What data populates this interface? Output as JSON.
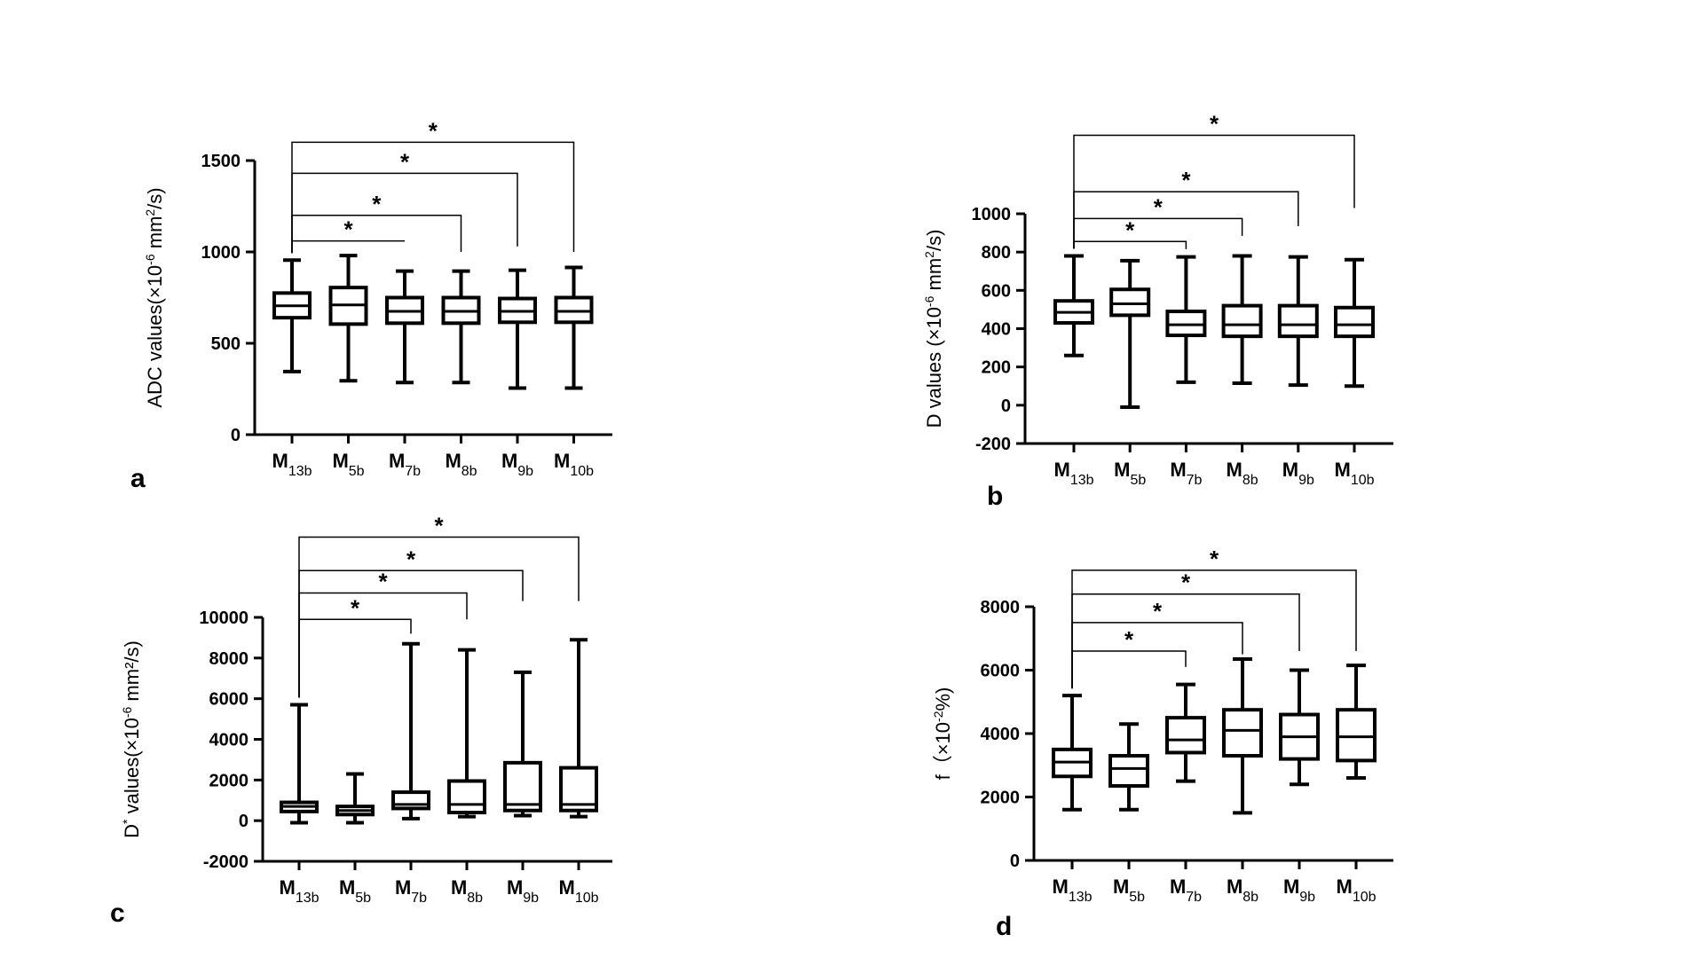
{
  "figure": {
    "background": "#ffffff",
    "stroke_color": "#000000"
  },
  "chart_data": [
    {
      "type": "box",
      "panel_label": "a",
      "ylabel_main": "ADC values(×10",
      "ylabel_sup": "-6",
      "ylabel_mid": " mm",
      "ylabel_sup2": "2",
      "ylabel_end": "/s)",
      "ylim": [
        0,
        1500
      ],
      "yticks": [
        0,
        500,
        1000,
        1500
      ],
      "categories": [
        {
          "base": "M",
          "sub": "13b"
        },
        {
          "base": "M",
          "sub": "5b"
        },
        {
          "base": "M",
          "sub": "7b"
        },
        {
          "base": "M",
          "sub": "8b"
        },
        {
          "base": "M",
          "sub": "9b"
        },
        {
          "base": "M",
          "sub": "10b"
        }
      ],
      "boxes": [
        {
          "min": 345,
          "q1": 640,
          "median": 705,
          "q3": 775,
          "max": 955
        },
        {
          "min": 295,
          "q1": 605,
          "median": 710,
          "q3": 805,
          "max": 980
        },
        {
          "min": 285,
          "q1": 610,
          "median": 675,
          "q3": 750,
          "max": 895
        },
        {
          "min": 285,
          "q1": 610,
          "median": 675,
          "q3": 750,
          "max": 895
        },
        {
          "min": 255,
          "q1": 615,
          "median": 675,
          "q3": 745,
          "max": 900
        },
        {
          "min": 255,
          "q1": 615,
          "median": 675,
          "q3": 750,
          "max": 915
        }
      ],
      "significance": [
        {
          "from": 0,
          "to": 2,
          "label": "*",
          "top": 1060,
          "right_end": 1060
        },
        {
          "from": 0,
          "to": 3,
          "label": "*",
          "top": 1200,
          "right_end": 1000
        },
        {
          "from": 0,
          "to": 4,
          "label": "*",
          "top": 1430,
          "right_end": 1030
        },
        {
          "from": 0,
          "to": 5,
          "label": "*",
          "top": 1600,
          "right_end": 1000
        }
      ]
    },
    {
      "type": "box",
      "panel_label": "b",
      "ylabel_main": "D values (×10",
      "ylabel_sup": "-6",
      "ylabel_mid": " mm",
      "ylabel_sup2": "2",
      "ylabel_end": "/s)",
      "ylim": [
        -200,
        1000
      ],
      "yticks": [
        -200,
        0,
        200,
        400,
        600,
        800,
        1000
      ],
      "categories": [
        {
          "base": "M",
          "sub": "13b"
        },
        {
          "base": "M",
          "sub": "5b"
        },
        {
          "base": "M",
          "sub": "7b"
        },
        {
          "base": "M",
          "sub": "8b"
        },
        {
          "base": "M",
          "sub": "9b"
        },
        {
          "base": "M",
          "sub": "10b"
        }
      ],
      "boxes": [
        {
          "min": 260,
          "q1": 430,
          "median": 485,
          "q3": 545,
          "max": 780
        },
        {
          "min": -10,
          "q1": 470,
          "median": 530,
          "q3": 605,
          "max": 755
        },
        {
          "min": 120,
          "q1": 365,
          "median": 420,
          "q3": 490,
          "max": 775
        },
        {
          "min": 115,
          "q1": 360,
          "median": 420,
          "q3": 520,
          "max": 780
        },
        {
          "min": 105,
          "q1": 360,
          "median": 420,
          "q3": 520,
          "max": 775
        },
        {
          "min": 100,
          "q1": 360,
          "median": 420,
          "q3": 510,
          "max": 760
        }
      ],
      "significance": [
        {
          "from": 0,
          "to": 2,
          "label": "*",
          "top": 855,
          "right_end": 815
        },
        {
          "from": 0,
          "to": 3,
          "label": "*",
          "top": 975,
          "right_end": 885
        },
        {
          "from": 0,
          "to": 4,
          "label": "*",
          "top": 1115,
          "right_end": 935
        },
        {
          "from": 0,
          "to": 5,
          "label": "*",
          "top": 1410,
          "right_end": 1030
        }
      ]
    },
    {
      "type": "box",
      "panel_label": "c",
      "ylabel_main": "D",
      "ylabel_sup": "*",
      "ylabel_mid": " values(×10",
      "ylabel_sup2": "-6",
      "ylabel_end": " mm²/s)",
      "ylim": [
        -2000,
        10000
      ],
      "yticks": [
        -2000,
        0,
        2000,
        4000,
        6000,
        8000,
        10000
      ],
      "categories": [
        {
          "base": "M",
          "sub": "13b"
        },
        {
          "base": "M",
          "sub": "5b"
        },
        {
          "base": "M",
          "sub": "7b"
        },
        {
          "base": "M",
          "sub": "8b"
        },
        {
          "base": "M",
          "sub": "9b"
        },
        {
          "base": "M",
          "sub": "10b"
        }
      ],
      "boxes": [
        {
          "min": -100,
          "q1": 450,
          "median": 700,
          "q3": 900,
          "max": 5700
        },
        {
          "min": -100,
          "q1": 300,
          "median": 500,
          "q3": 700,
          "max": 2300
        },
        {
          "min": 100,
          "q1": 600,
          "median": 800,
          "q3": 1400,
          "max": 8700
        },
        {
          "min": 200,
          "q1": 400,
          "median": 800,
          "q3": 1950,
          "max": 8400
        },
        {
          "min": 250,
          "q1": 500,
          "median": 800,
          "q3": 2850,
          "max": 7300
        },
        {
          "min": 200,
          "q1": 500,
          "median": 800,
          "q3": 2600,
          "max": 8900
        }
      ],
      "significance": [
        {
          "from": 0,
          "to": 2,
          "label": "*",
          "top": 9900,
          "right_end": 9200
        },
        {
          "from": 0,
          "to": 3,
          "label": "*",
          "top": 11200,
          "right_end": 9900
        },
        {
          "from": 0,
          "to": 4,
          "label": "*",
          "top": 12300,
          "right_end": 10800
        },
        {
          "from": 0,
          "to": 5,
          "label": "*",
          "top": 13950,
          "right_end": 10800
        }
      ]
    },
    {
      "type": "box",
      "panel_label": "d",
      "ylabel_main": "f（×10",
      "ylabel_sup": "-2",
      "ylabel_mid": "%)",
      "ylabel_sup2": "",
      "ylabel_end": "",
      "ylim": [
        0,
        8000
      ],
      "yticks": [
        0,
        2000,
        4000,
        6000,
        8000
      ],
      "categories": [
        {
          "base": "M",
          "sub": "13b"
        },
        {
          "base": "M",
          "sub": "5b"
        },
        {
          "base": "M",
          "sub": "7b"
        },
        {
          "base": "M",
          "sub": "8b"
        },
        {
          "base": "M",
          "sub": "9b"
        },
        {
          "base": "M",
          "sub": "10b"
        }
      ],
      "boxes": [
        {
          "min": 1600,
          "q1": 2650,
          "median": 3100,
          "q3": 3500,
          "max": 5200
        },
        {
          "min": 1600,
          "q1": 2350,
          "median": 2900,
          "q3": 3300,
          "max": 4300
        },
        {
          "min": 2500,
          "q1": 3400,
          "median": 3800,
          "q3": 4500,
          "max": 5550
        },
        {
          "min": 1500,
          "q1": 3300,
          "median": 4100,
          "q3": 4750,
          "max": 6350
        },
        {
          "min": 2400,
          "q1": 3200,
          "median": 3900,
          "q3": 4600,
          "max": 6000
        },
        {
          "min": 2600,
          "q1": 3150,
          "median": 3900,
          "q3": 4750,
          "max": 6150
        }
      ],
      "significance": [
        {
          "from": 0,
          "to": 2,
          "label": "*",
          "top": 6600,
          "right_end": 6100
        },
        {
          "from": 0,
          "to": 3,
          "label": "*",
          "top": 7500,
          "right_end": 6500
        },
        {
          "from": 0,
          "to": 4,
          "label": "*",
          "top": 8400,
          "right_end": 6600
        },
        {
          "from": 0,
          "to": 5,
          "label": "*",
          "top": 9150,
          "right_end": 6600
        }
      ]
    }
  ]
}
